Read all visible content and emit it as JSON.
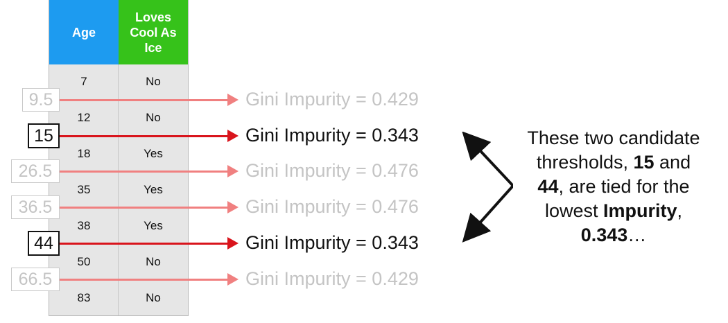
{
  "table": {
    "headers": {
      "age": "Age",
      "loves": [
        "Loves",
        "Cool As",
        "Ice"
      ]
    },
    "rows": [
      {
        "age": "7",
        "loves": "No"
      },
      {
        "age": "12",
        "loves": "No"
      },
      {
        "age": "18",
        "loves": "Yes"
      },
      {
        "age": "35",
        "loves": "Yes"
      },
      {
        "age": "38",
        "loves": "Yes"
      },
      {
        "age": "50",
        "loves": "No"
      },
      {
        "age": "83",
        "loves": "No"
      }
    ]
  },
  "thresholds": [
    {
      "value": "9.5",
      "gini": "Gini Impurity = 0.429",
      "highlighted": false
    },
    {
      "value": "15",
      "gini": "Gini Impurity = 0.343",
      "highlighted": true
    },
    {
      "value": "26.5",
      "gini": "Gini Impurity = 0.476",
      "highlighted": false
    },
    {
      "value": "36.5",
      "gini": "Gini Impurity = 0.476",
      "highlighted": false
    },
    {
      "value": "44",
      "gini": "Gini Impurity = 0.343",
      "highlighted": true
    },
    {
      "value": "66.5",
      "gini": "Gini Impurity = 0.429",
      "highlighted": false
    }
  ],
  "note": {
    "line1": "These two candidate",
    "line2_pre": "thresholds, ",
    "line2_b": "15",
    "line2_post": " and",
    "line3_b": "44",
    "line3_post": ", are tied for the",
    "line4_pre": "lowest ",
    "line4_b": "Impurity",
    "line4_post": ",",
    "line5_b": "0.343",
    "line5_post": "…"
  },
  "colors": {
    "age_header": "#1d9bf0",
    "loves_header": "#36c21a",
    "arrow_faded": "#f08080",
    "arrow_active": "#d9141c",
    "text_faded": "#c4c4c4"
  }
}
